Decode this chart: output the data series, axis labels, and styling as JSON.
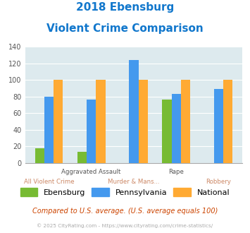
{
  "title_line1": "2018 Ebensburg",
  "title_line2": "Violent Crime Comparison",
  "categories": [
    "All Violent Crime",
    "Aggravated Assault",
    "Murder & Mans...",
    "Rape",
    "Robbery"
  ],
  "row1_labels": {
    "1": "Aggravated Assault",
    "3": "Rape"
  },
  "row2_labels": {
    "0": "All Violent Crime",
    "2": "Murder & Mans...",
    "4": "Robbery"
  },
  "ebensburg": [
    18,
    14,
    0,
    76,
    0
  ],
  "pennsylvania": [
    80,
    76,
    124,
    83,
    89
  ],
  "national": [
    100,
    100,
    100,
    100,
    100
  ],
  "color_ebensburg": "#77bb33",
  "color_pennsylvania": "#4499ee",
  "color_national": "#ffaa33",
  "ylim": [
    0,
    140
  ],
  "yticks": [
    0,
    20,
    40,
    60,
    80,
    100,
    120,
    140
  ],
  "bg_color": "#ddeaee",
  "fig_bg": "#ffffff",
  "title_color": "#1177cc",
  "footer_text": "Compared to U.S. average. (U.S. average equals 100)",
  "copyright_text": "© 2025 CityRating.com - https://www.cityrating.com/crime-statistics/",
  "footer_color": "#cc4400",
  "copyright_color": "#aaaaaa",
  "row1_label_color": "#555555",
  "row2_label_color": "#cc8866"
}
